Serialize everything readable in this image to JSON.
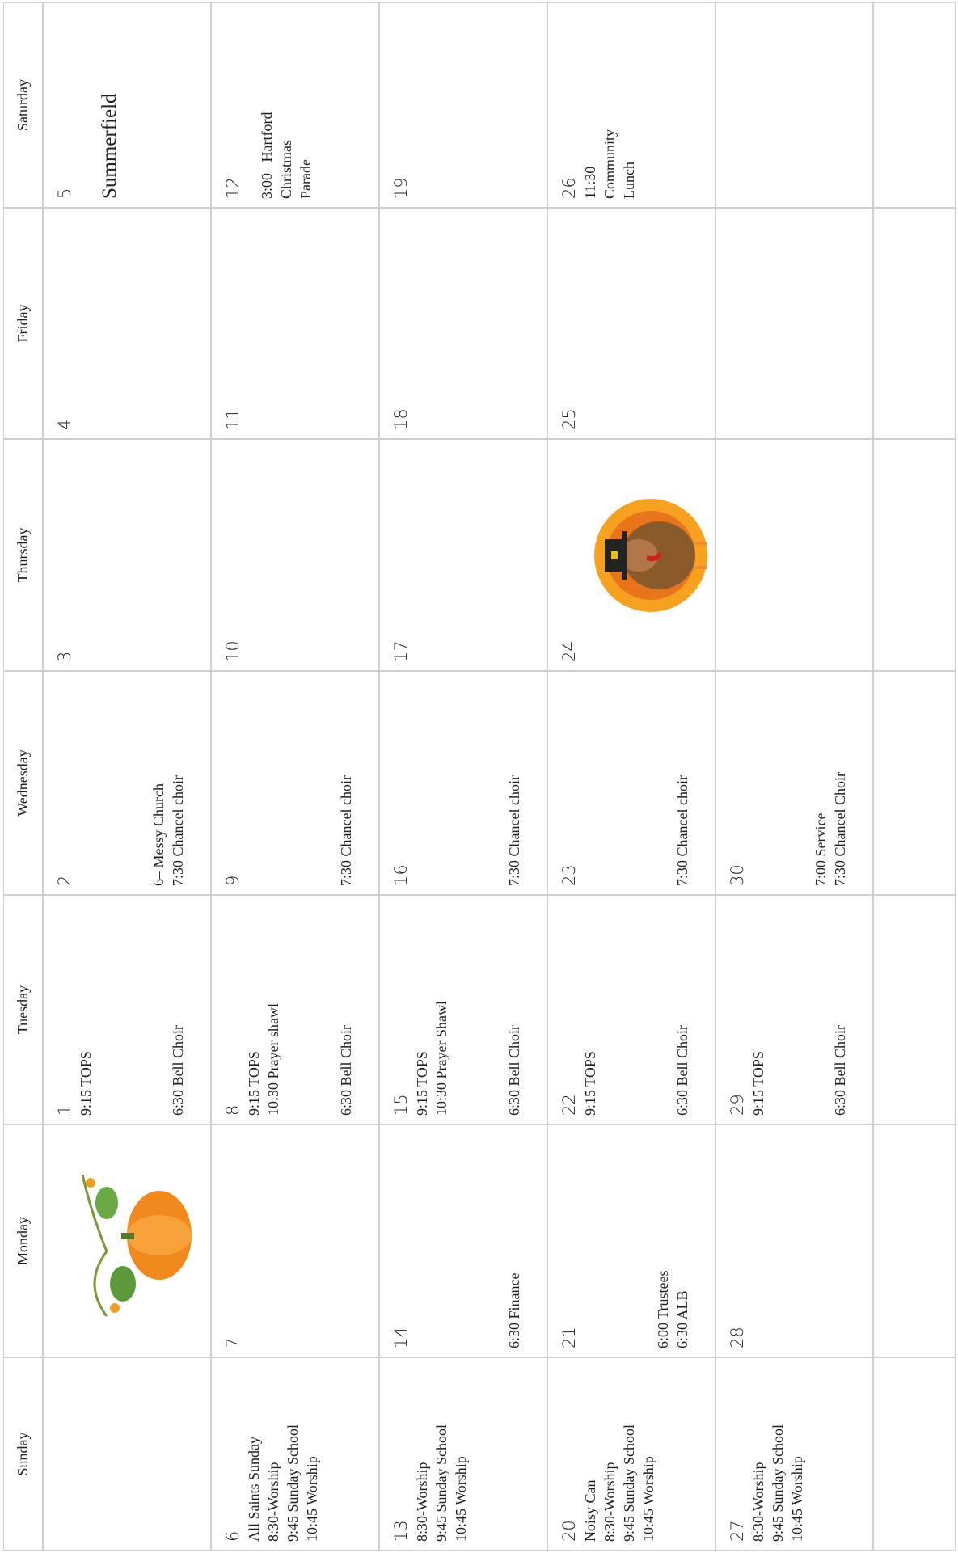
{
  "headers": [
    "Sunday",
    "Monday",
    "Tuesday",
    "Wednesday",
    "Thursday",
    "Friday",
    "Saturday"
  ],
  "weeks": [
    {
      "days": [
        {},
        {},
        {
          "date": "1",
          "events": [
            [
              "9:15 TOPS"
            ],
            [
              "6:30 Bell Choir"
            ]
          ]
        },
        {
          "date": "2",
          "events": [
            [
              "6– Messy Church",
              "7:30 Chancel choir"
            ]
          ]
        },
        {
          "date": "3"
        },
        {
          "date": "4"
        },
        {
          "date": "5",
          "events": [
            [
              "Summerfield"
            ]
          ]
        }
      ]
    },
    {
      "days": [
        {
          "date": "6",
          "events": [
            [
              "All Saints Sunday",
              "8:30-Worship",
              "9:45 Sunday School",
              "10:45 Worship"
            ]
          ]
        },
        {
          "date": "7"
        },
        {
          "date": "8",
          "events": [
            [
              "9:15 TOPS",
              "10:30 Prayer shawl"
            ],
            [
              "6:30 Bell Choir"
            ]
          ]
        },
        {
          "date": "9",
          "events": [
            [
              "7:30 Chancel choir"
            ]
          ]
        },
        {
          "date": "10"
        },
        {
          "date": "11"
        },
        {
          "date": "12",
          "events": [
            [
              "3:00 –Hartford",
              "Christmas",
              "Parade"
            ]
          ]
        }
      ]
    },
    {
      "days": [
        {
          "date": "13",
          "events": [
            [
              "8:30-Worship",
              "9:45 Sunday School",
              "10:45 Worship"
            ]
          ]
        },
        {
          "date": "14",
          "events": [
            [
              "6:30 Finance"
            ]
          ]
        },
        {
          "date": "15",
          "events": [
            [
              "9:15 TOPS",
              "10:30 Prayer Shawl"
            ],
            [
              "6:30 Bell Choir"
            ]
          ]
        },
        {
          "date": "16",
          "events": [
            [
              "7:30 Chancel choir"
            ]
          ]
        },
        {
          "date": "17"
        },
        {
          "date": "18"
        },
        {
          "date": "19"
        }
      ]
    },
    {
      "days": [
        {
          "date": "20",
          "events": [
            [
              "Noisy Can",
              "8:30-Worship",
              "9:45 Sunday School",
              "10:45 Worship"
            ]
          ]
        },
        {
          "date": "21",
          "events": [
            [
              "6:00 Trustees",
              "6:30 ALB"
            ]
          ]
        },
        {
          "date": "22",
          "events": [
            [
              "9:15 TOPS"
            ],
            [
              "6:30 Bell Choir"
            ]
          ]
        },
        {
          "date": "23",
          "events": [
            [
              "7:30 Chancel choir"
            ]
          ]
        },
        {
          "date": "24"
        },
        {
          "date": "25"
        },
        {
          "date": "26",
          "events": [
            [
              "11:30",
              "Community",
              "Lunch"
            ]
          ]
        }
      ]
    },
    {
      "days": [
        {
          "date": "27",
          "events": [
            [
              "8:30-Worship",
              "9:45 Sunday School",
              "10:45 Worship"
            ]
          ]
        },
        {
          "date": "28"
        },
        {
          "date": "29",
          "events": [
            [
              "9:15 TOPS"
            ],
            [
              "6:30 Bell Choir"
            ]
          ]
        },
        {
          "date": "30",
          "events": [
            [
              "7:00 Service",
              "7:30 Chancel Choir"
            ]
          ]
        },
        {},
        {},
        {}
      ]
    }
  ]
}
